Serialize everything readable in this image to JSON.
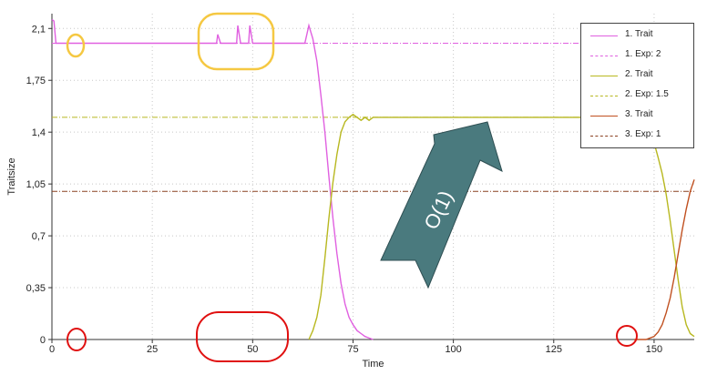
{
  "chart_data": {
    "type": "line",
    "xlabel": "Time",
    "ylabel": "Traitsize",
    "xlim": [
      0,
      160
    ],
    "ylim": [
      0,
      2.2
    ],
    "x_ticks": [
      "0",
      "25",
      "50",
      "75",
      "100",
      "125",
      "150"
    ],
    "x_tick_values": [
      0,
      25,
      50,
      75,
      100,
      125,
      150
    ],
    "y_ticks": [
      "0",
      "0,35",
      "0,7",
      "1,05",
      "1,4",
      "1,75",
      "2,1"
    ],
    "y_tick_values": [
      0,
      0.35,
      0.7,
      1.05,
      1.4,
      1.75,
      2.1
    ],
    "grid": true,
    "legend_position": "top-right",
    "series": [
      {
        "name": "1. Trait",
        "color": "#e060e0",
        "style": "solid",
        "x": [
          0,
          0.5,
          1,
          5,
          10,
          20,
          30,
          40,
          41,
          41.3,
          42,
          46,
          46.3,
          47,
          49,
          49.3,
          50,
          55,
          60,
          63,
          64,
          65,
          66,
          67,
          68,
          69,
          70,
          71,
          72,
          73,
          74,
          75,
          76,
          77,
          78,
          79,
          80
        ],
        "values": [
          2.16,
          2.15,
          2.0,
          2.0,
          2.0,
          2.0,
          2.0,
          2.0,
          2.0,
          2.06,
          2.0,
          2.0,
          2.12,
          2.0,
          2.0,
          2.12,
          2.0,
          2.0,
          2.0,
          2.0,
          2.12,
          2.03,
          1.88,
          1.65,
          1.4,
          1.1,
          0.82,
          0.58,
          0.38,
          0.24,
          0.15,
          0.1,
          0.06,
          0.04,
          0.02,
          0.01,
          0.0
        ]
      },
      {
        "name": "1. Exp: 2",
        "color": "#e060e0",
        "style": "dashdot",
        "x": [
          0,
          160
        ],
        "values": [
          2.0,
          2.0
        ]
      },
      {
        "name": "2. Trait",
        "color": "#b8b820",
        "style": "solid",
        "x": [
          64,
          65,
          66,
          67,
          68,
          69,
          70,
          71,
          72,
          73,
          74,
          75,
          76,
          77,
          78,
          79,
          80,
          85,
          100,
          125,
          140,
          145,
          147,
          148,
          149,
          150,
          151,
          152,
          153,
          154,
          155,
          156,
          157,
          158,
          159,
          160
        ],
        "values": [
          0.0,
          0.06,
          0.15,
          0.3,
          0.55,
          0.82,
          1.06,
          1.25,
          1.4,
          1.47,
          1.5,
          1.52,
          1.5,
          1.48,
          1.5,
          1.48,
          1.5,
          1.5,
          1.5,
          1.5,
          1.5,
          1.5,
          1.5,
          1.5,
          1.45,
          1.33,
          1.23,
          1.12,
          0.98,
          0.8,
          0.6,
          0.4,
          0.22,
          0.1,
          0.04,
          0.02
        ]
      },
      {
        "name": "2. Exp: 1.5",
        "color": "#b8b820",
        "style": "dashdot",
        "x": [
          0,
          160
        ],
        "values": [
          1.5,
          1.5
        ]
      },
      {
        "name": "3. Trait",
        "color": "#c05020",
        "style": "solid",
        "x": [
          145,
          148,
          150,
          151,
          152,
          153,
          154,
          155,
          156,
          157,
          158,
          159,
          160
        ],
        "values": [
          0.0,
          0.0,
          0.02,
          0.05,
          0.1,
          0.18,
          0.28,
          0.42,
          0.58,
          0.74,
          0.88,
          1.0,
          1.08
        ]
      },
      {
        "name": "3. Exp: 1",
        "color": "#8a4020",
        "style": "dashdot",
        "x": [
          0,
          160
        ],
        "values": [
          1.0,
          1.0
        ]
      }
    ],
    "annotations": {
      "arrow_label": "O(1)",
      "arrow_color": "#4a7a7e",
      "highlight_yellow": "#f5c842",
      "highlight_red": "#e01010"
    }
  }
}
